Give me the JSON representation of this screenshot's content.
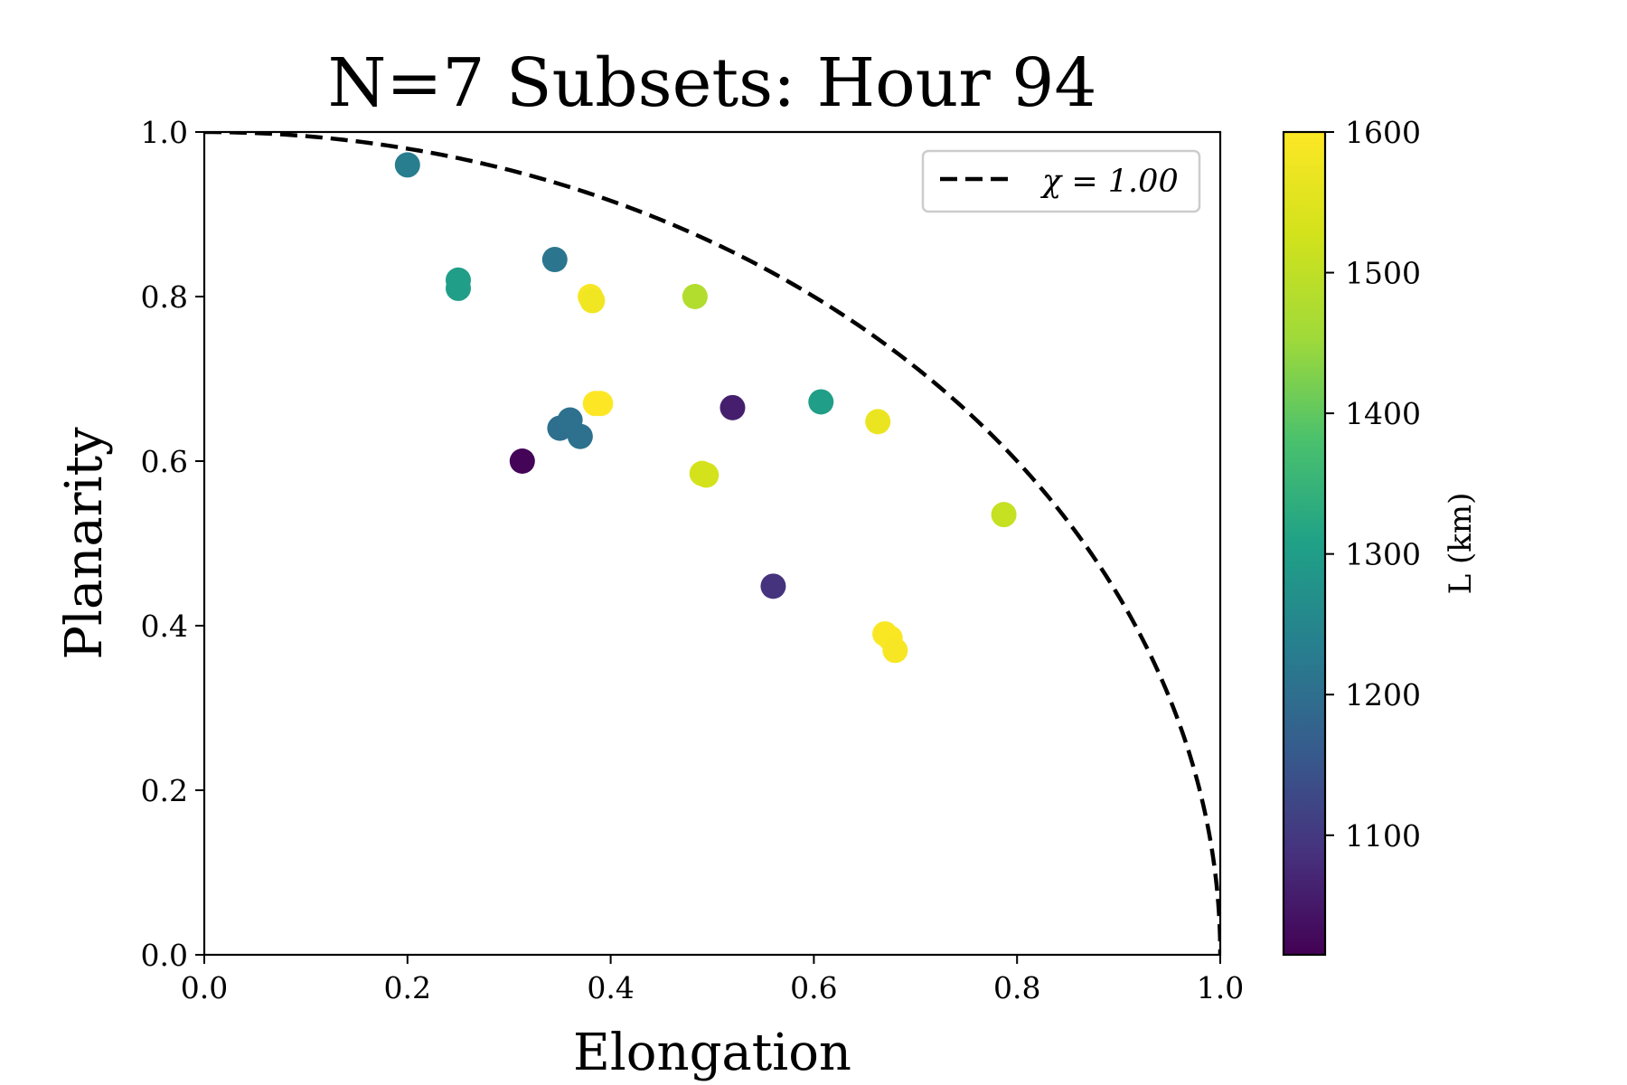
{
  "chart_data": {
    "type": "scatter",
    "title": "N=7 Subsets: Hour 94",
    "xlabel": "Elongation",
    "ylabel": "Planarity",
    "xlim": [
      0.0,
      1.0
    ],
    "ylim": [
      0.0,
      1.0
    ],
    "x_ticks": [
      "0.0",
      "0.2",
      "0.4",
      "0.6",
      "0.8",
      "1.0"
    ],
    "y_ticks": [
      "0.0",
      "0.2",
      "0.4",
      "0.6",
      "0.8",
      "1.0"
    ],
    "grid": false,
    "legend": {
      "placement": "top-right",
      "entries": [
        {
          "label": "χ = 1.00",
          "style": "dashed",
          "color": "#000000"
        }
      ]
    },
    "reference_curve": {
      "chi": 1.0,
      "equation": "x^2 + y^2 = 1"
    },
    "colorbar": {
      "label": "L (km)",
      "colormap": "viridis",
      "range": [
        1015,
        1600
      ],
      "ticks": [
        "1100",
        "1200",
        "1300",
        "1400",
        "1500",
        "1600"
      ]
    },
    "points": [
      {
        "x": 0.2,
        "y": 0.96,
        "L": 1230
      },
      {
        "x": 0.25,
        "y": 0.82,
        "L": 1300
      },
      {
        "x": 0.25,
        "y": 0.81,
        "L": 1300
      },
      {
        "x": 0.345,
        "y": 0.845,
        "L": 1215
      },
      {
        "x": 0.38,
        "y": 0.8,
        "L": 1590
      },
      {
        "x": 0.382,
        "y": 0.795,
        "L": 1580
      },
      {
        "x": 0.483,
        "y": 0.8,
        "L": 1480
      },
      {
        "x": 0.385,
        "y": 0.67,
        "L": 1600
      },
      {
        "x": 0.39,
        "y": 0.67,
        "L": 1600
      },
      {
        "x": 0.35,
        "y": 0.64,
        "L": 1200
      },
      {
        "x": 0.36,
        "y": 0.65,
        "L": 1205
      },
      {
        "x": 0.37,
        "y": 0.63,
        "L": 1205
      },
      {
        "x": 0.313,
        "y": 0.6,
        "L": 1020
      },
      {
        "x": 0.52,
        "y": 0.665,
        "L": 1060
      },
      {
        "x": 0.607,
        "y": 0.672,
        "L": 1300
      },
      {
        "x": 0.663,
        "y": 0.648,
        "L": 1570
      },
      {
        "x": 0.49,
        "y": 0.585,
        "L": 1530
      },
      {
        "x": 0.494,
        "y": 0.583,
        "L": 1530
      },
      {
        "x": 0.787,
        "y": 0.535,
        "L": 1510
      },
      {
        "x": 0.56,
        "y": 0.448,
        "L": 1090
      },
      {
        "x": 0.67,
        "y": 0.39,
        "L": 1595
      },
      {
        "x": 0.675,
        "y": 0.385,
        "L": 1595
      },
      {
        "x": 0.68,
        "y": 0.37,
        "L": 1590
      }
    ]
  }
}
